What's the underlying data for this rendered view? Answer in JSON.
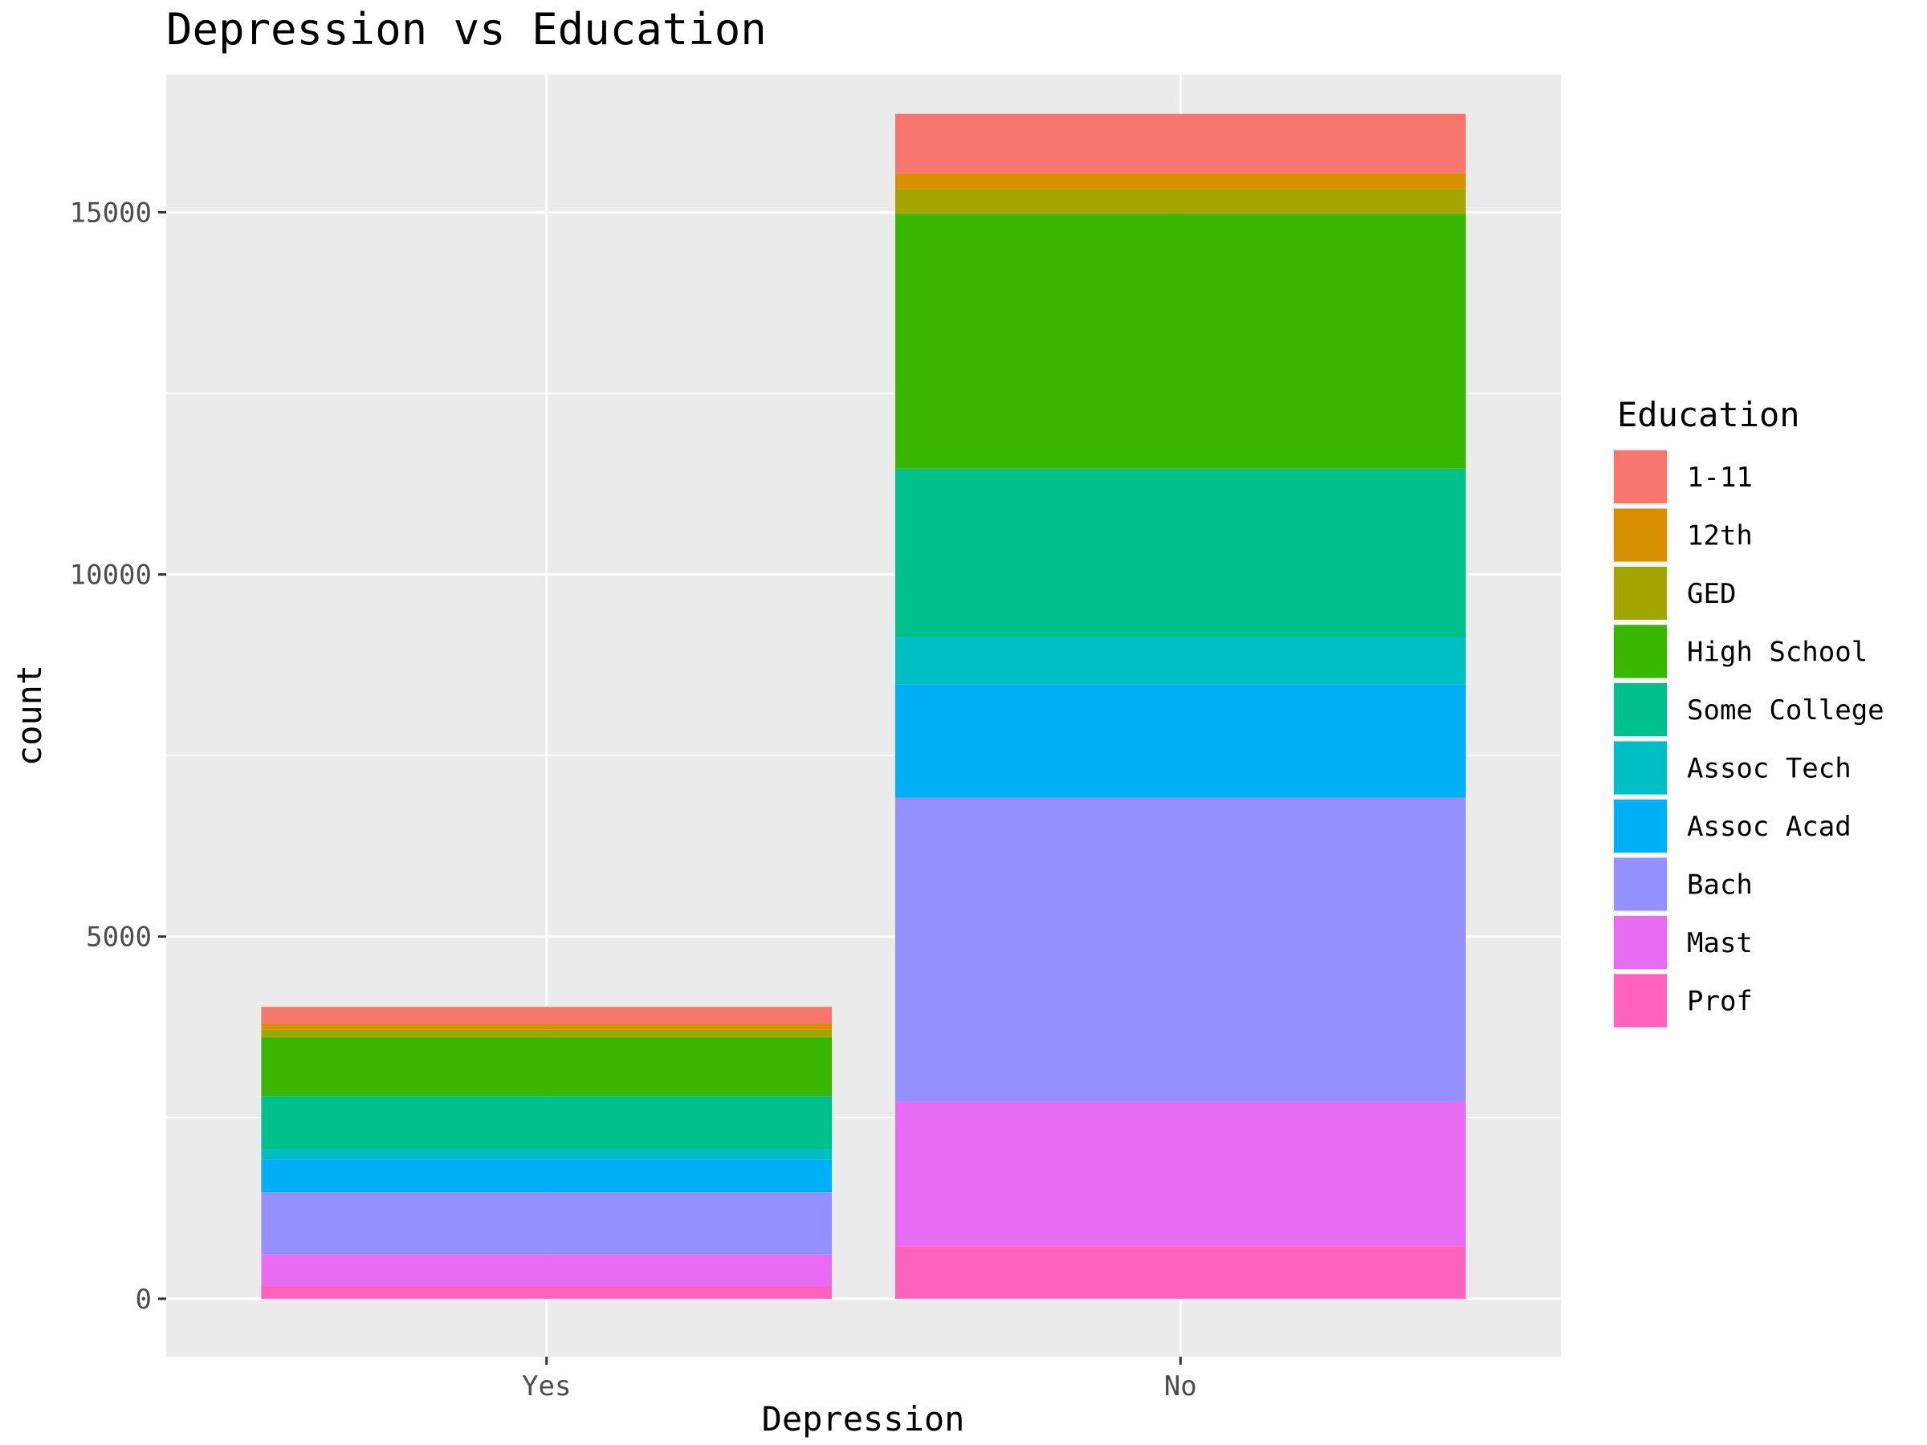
{
  "chart_data": {
    "type": "bar",
    "stacked": true,
    "title": "Depression vs Education",
    "xlabel": "Depression",
    "ylabel": "count",
    "categories": [
      "Yes",
      "No"
    ],
    "ylim": [
      -800,
      16900
    ],
    "yticks": [
      0,
      5000,
      10000,
      15000
    ],
    "grid": true,
    "legend": {
      "title": "Education",
      "position": "right"
    },
    "series": [
      {
        "name": "Prof",
        "color": "#FF62BC",
        "values": [
          180,
          720
        ]
      },
      {
        "name": "Mast",
        "color": "#E76BF3",
        "values": [
          430,
          2000
        ]
      },
      {
        "name": "Bach",
        "color": "#9590FF",
        "values": [
          860,
          4200
        ]
      },
      {
        "name": "Assoc Acad",
        "color": "#00B0F6",
        "values": [
          450,
          1560
        ]
      },
      {
        "name": "Assoc Tech",
        "color": "#00BFC4",
        "values": [
          140,
          650
        ]
      },
      {
        "name": "Some College",
        "color": "#00C08B",
        "values": [
          740,
          2330
        ]
      },
      {
        "name": "High School",
        "color": "#39B600",
        "values": [
          810,
          3520
        ]
      },
      {
        "name": "GED",
        "color": "#A3A500",
        "values": [
          110,
          340
        ]
      },
      {
        "name": "12th",
        "color": "#D89000",
        "values": [
          80,
          220
        ]
      },
      {
        "name": "1-11",
        "color": "#F8766D",
        "values": [
          230,
          820
        ]
      }
    ],
    "legend_order": [
      "1-11",
      "12th",
      "GED",
      "High School",
      "Some College",
      "Assoc Tech",
      "Assoc Acad",
      "Bach",
      "Mast",
      "Prof"
    ]
  }
}
